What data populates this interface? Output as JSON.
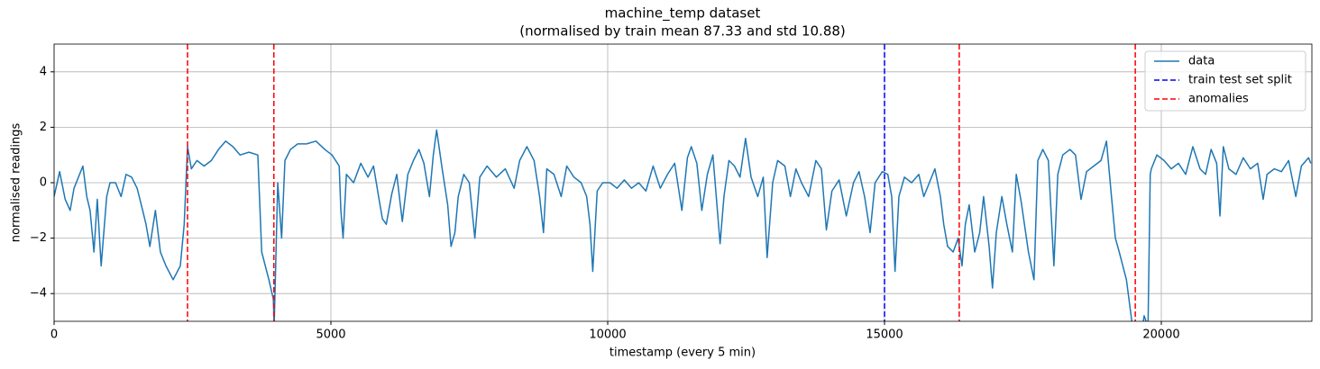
{
  "chart_data": {
    "type": "line",
    "title": "machine_temp dataset",
    "subtitle": "(normalised by train mean 87.33 and std 10.88)",
    "xlabel": "timestamp (every 5 min)",
    "ylabel": "normalised readings",
    "xlim": [
      0,
      22720
    ],
    "ylim": [
      -5,
      5
    ],
    "xticks": [
      0,
      5000,
      10000,
      15000,
      20000
    ],
    "yticks": [
      {
        "value": -4,
        "label": "−4"
      },
      {
        "value": -2,
        "label": "−2"
      },
      0,
      2,
      4
    ],
    "grid": true,
    "legend": "upper right",
    "x": [
      0,
      100,
      200,
      290,
      360,
      460,
      520,
      590,
      650,
      720,
      780,
      850,
      950,
      1010,
      1110,
      1210,
      1300,
      1400,
      1500,
      1600,
      1660,
      1730,
      1830,
      1920,
      2020,
      2150,
      2280,
      2350,
      2410,
      2480,
      2580,
      2710,
      2840,
      2970,
      3100,
      3230,
      3360,
      3520,
      3680,
      3750,
      3880,
      3960,
      3975,
      4040,
      4110,
      4170,
      4270,
      4400,
      4560,
      4730,
      4890,
      5020,
      5150,
      5180,
      5220,
      5280,
      5410,
      5540,
      5670,
      5770,
      5870,
      5930,
      6000,
      6100,
      6190,
      6290,
      6390,
      6490,
      6590,
      6680,
      6780,
      6850,
      6910,
      7010,
      7110,
      7170,
      7240,
      7300,
      7400,
      7500,
      7600,
      7690,
      7820,
      7990,
      8150,
      8310,
      8410,
      8540,
      8670,
      8770,
      8840,
      8900,
      9030,
      9160,
      9260,
      9390,
      9520,
      9620,
      9680,
      9730,
      9810,
      9910,
      10040,
      10170,
      10300,
      10430,
      10560,
      10690,
      10820,
      10950,
      11080,
      11210,
      11340,
      11440,
      11510,
      11610,
      11700,
      11800,
      11900,
      12030,
      12100,
      12190,
      12290,
      12390,
      12490,
      12590,
      12710,
      12810,
      12880,
      12980,
      13070,
      13200,
      13300,
      13400,
      13500,
      13630,
      13760,
      13860,
      13950,
      14050,
      14180,
      14310,
      14440,
      14540,
      14640,
      14740,
      14830,
      14960,
      15060,
      15130,
      15190,
      15260,
      15360,
      15490,
      15620,
      15710,
      15810,
      15910,
      16010,
      16070,
      16140,
      16240,
      16330,
      16400,
      16460,
      16530,
      16630,
      16720,
      16790,
      16890,
      16950,
      17020,
      17120,
      17210,
      17310,
      17380,
      17470,
      17600,
      17700,
      17770,
      17860,
      17960,
      18060,
      18130,
      18220,
      18350,
      18450,
      18550,
      18650,
      18780,
      18910,
      19010,
      19100,
      19170,
      19240,
      19370,
      19480,
      19660,
      19690,
      19760,
      19800,
      19820,
      19920,
      20050,
      20180,
      20310,
      20440,
      20570,
      20700,
      20800,
      20900,
      21000,
      21060,
      21120,
      21220,
      21350,
      21480,
      21610,
      21740,
      21840,
      21910,
      22040,
      22170,
      22300,
      22430,
      22530,
      22660,
      22700
    ],
    "series": [
      {
        "name": "data",
        "color": "#1f77b4",
        "values": [
          -0.5,
          0.4,
          -0.6,
          -1.0,
          -0.2,
          0.3,
          0.6,
          -0.5,
          -1.0,
          -2.5,
          -0.6,
          -3.0,
          -0.5,
          0.0,
          0.0,
          -0.5,
          0.3,
          0.2,
          -0.2,
          -1.0,
          -1.5,
          -2.3,
          -1.0,
          -2.5,
          -3.0,
          -3.5,
          -3.0,
          -1.5,
          1.3,
          0.5,
          0.8,
          0.6,
          0.8,
          1.2,
          1.5,
          1.3,
          1.0,
          1.1,
          1.0,
          -2.5,
          -3.5,
          -4.2,
          -5.2,
          0.0,
          -2.0,
          0.8,
          1.2,
          1.4,
          1.4,
          1.5,
          1.2,
          1.0,
          0.6,
          -1.0,
          -2.0,
          0.3,
          0.0,
          0.7,
          0.2,
          0.6,
          -0.6,
          -1.3,
          -1.5,
          -0.4,
          0.3,
          -1.4,
          0.3,
          0.8,
          1.2,
          0.7,
          -0.5,
          1.0,
          1.9,
          0.5,
          -0.8,
          -2.3,
          -1.8,
          -0.5,
          0.3,
          0.0,
          -2.0,
          0.2,
          0.6,
          0.2,
          0.5,
          -0.2,
          0.8,
          1.3,
          0.8,
          -0.5,
          -1.8,
          0.5,
          0.3,
          -0.5,
          0.6,
          0.2,
          0.0,
          -0.5,
          -1.5,
          -3.2,
          -0.3,
          0.0,
          0.0,
          -0.2,
          0.1,
          -0.2,
          0.0,
          -0.3,
          0.6,
          -0.2,
          0.3,
          0.7,
          -1.0,
          0.9,
          1.3,
          0.7,
          -1.0,
          0.3,
          1.0,
          -2.2,
          -0.5,
          0.8,
          0.6,
          0.2,
          1.6,
          0.2,
          -0.5,
          0.2,
          -2.7,
          0.0,
          0.8,
          0.6,
          -0.5,
          0.5,
          0.0,
          -0.5,
          0.8,
          0.5,
          -1.7,
          -0.3,
          0.1,
          -1.2,
          0.0,
          0.4,
          -0.5,
          -1.8,
          0.0,
          0.4,
          0.3,
          -0.5,
          -3.2,
          -0.5,
          0.2,
          0.0,
          0.3,
          -0.5,
          0.0,
          0.5,
          -0.5,
          -1.5,
          -2.3,
          -2.5,
          -2.0,
          -3.0,
          -1.5,
          -0.8,
          -2.5,
          -1.8,
          -0.5,
          -2.3,
          -3.8,
          -1.8,
          -0.5,
          -1.5,
          -2.5,
          0.3,
          -0.7,
          -2.5,
          -3.5,
          0.8,
          1.2,
          0.8,
          -3.0,
          0.3,
          1.0,
          1.2,
          1.0,
          -0.6,
          0.4,
          0.6,
          0.8,
          1.5,
          -0.5,
          -2.0,
          -2.5,
          -3.5,
          -5.2,
          -5.2,
          -4.8,
          -5.2,
          0.3,
          0.5,
          1.0,
          0.8,
          0.5,
          0.7,
          0.3,
          1.3,
          0.5,
          0.3,
          1.2,
          0.7,
          -1.2,
          1.3,
          0.5,
          0.3,
          0.9,
          0.5,
          0.7,
          -0.6,
          0.3,
          0.5,
          0.4,
          0.8,
          -0.5,
          0.6,
          0.9,
          0.7
        ]
      }
    ],
    "split": {
      "name": "train test set split",
      "x": 15000,
      "color": "#0000ff"
    },
    "anomalies": {
      "name": "anomalies",
      "x": [
        2410,
        3970,
        16350,
        19530
      ],
      "color": "#ff0000"
    }
  }
}
